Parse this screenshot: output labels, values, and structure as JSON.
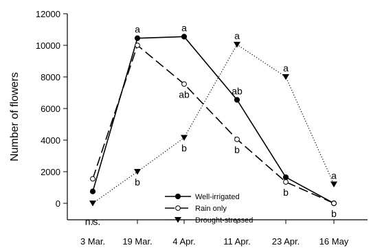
{
  "chart_data": {
    "type": "line",
    "xlabel": "",
    "ylabel": "Number of flowers",
    "ylim": [
      0,
      12000
    ],
    "yticks": [
      0,
      2000,
      4000,
      6000,
      8000,
      10000,
      12000
    ],
    "categories": [
      "3 Mar.",
      "19 Mar.",
      "4 Apr.",
      "11 Apr.",
      "23 Apr.",
      "16 May"
    ],
    "series": [
      {
        "name": "Well-irrigated",
        "marker": "filled-circle",
        "line_style": "solid",
        "values": [
          750,
          10450,
          10550,
          6550,
          1650,
          0
        ]
      },
      {
        "name": "Rain only",
        "marker": "open-circle",
        "line_style": "dashed",
        "values": [
          1550,
          10000,
          7550,
          4050,
          1350,
          0
        ]
      },
      {
        "name": "Drought-stressed",
        "marker": "filled-triangle-down",
        "line_style": "dotted",
        "values": [
          0,
          2000,
          4150,
          10050,
          8000,
          1200
        ]
      }
    ],
    "annotations": [
      {
        "text": "n.s.",
        "category": "3 Mar.",
        "y": -500,
        "placement": "below"
      },
      {
        "text": "a",
        "category": "19 Mar.",
        "y": 10450,
        "placement": "above"
      },
      {
        "text": "b",
        "category": "19 Mar.",
        "y": 2000,
        "placement": "below"
      },
      {
        "text": "a",
        "category": "4 Apr.",
        "y": 10550,
        "placement": "above"
      },
      {
        "text": "ab",
        "category": "4 Apr.",
        "y": 7550,
        "placement": "below"
      },
      {
        "text": "b",
        "category": "4 Apr.",
        "y": 4150,
        "placement": "below"
      },
      {
        "text": "a",
        "category": "11 Apr.",
        "y": 10050,
        "placement": "above"
      },
      {
        "text": "ab",
        "category": "11 Apr.",
        "y": 6550,
        "placement": "above"
      },
      {
        "text": "b",
        "category": "11 Apr.",
        "y": 4050,
        "placement": "below"
      },
      {
        "text": "a",
        "category": "23 Apr.",
        "y": 8000,
        "placement": "above"
      },
      {
        "text": "b",
        "category": "23 Apr.",
        "y": 1350,
        "placement": "below"
      },
      {
        "text": "a",
        "category": "16 May",
        "y": 1200,
        "placement": "above"
      },
      {
        "text": "b",
        "category": "16 May",
        "y": 0,
        "placement": "below"
      }
    ],
    "legend_position": "bottom-center",
    "grid": false
  }
}
